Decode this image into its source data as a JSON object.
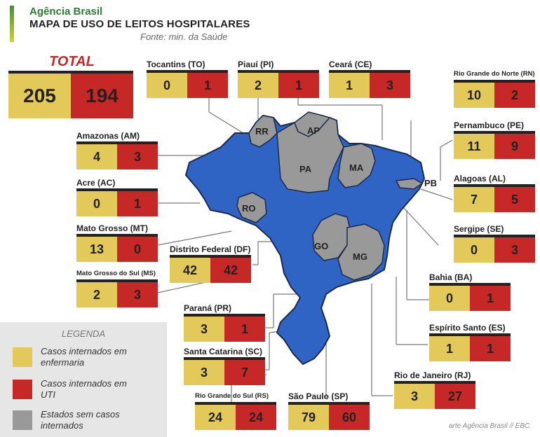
{
  "header": {
    "agency": "Agência Brasil",
    "title": "MAPA DE USO DE LEITOS HOSPITALARES",
    "source": "Fonte: min. da Saúde"
  },
  "colors": {
    "enfermaria": "#e2c95a",
    "uti": "#c62828",
    "sem_casos": "#999999",
    "com_casos": "#2f64c4"
  },
  "total": {
    "label": "TOTAL",
    "enfermaria": "205",
    "uti": "194"
  },
  "map_labels": {
    "rr": "RR",
    "ap": "AP",
    "pa": "PA",
    "ma": "MA",
    "ro": "RO",
    "go": "GO",
    "mg": "MG",
    "pb": "PB"
  },
  "legend": {
    "title": "LEGENDA",
    "items": [
      {
        "text": "Casos internados em enfermaria",
        "color": "#e2c95a"
      },
      {
        "text": "Casos internados em UTI",
        "color": "#c62828"
      },
      {
        "text": "Estados sem casos internados",
        "color": "#999999"
      }
    ]
  },
  "credit": "arte Agência Brasil // EBC",
  "chart_data": {
    "type": "table",
    "title": "MAPA DE USO DE LEITOS HOSPITALARES",
    "columns": [
      "Casos internados em enfermaria",
      "Casos internados em UTI"
    ],
    "states": [
      {
        "name": "Tocantins (TO)",
        "enfermaria": 0,
        "uti": 1
      },
      {
        "name": "Piauí (PI)",
        "enfermaria": 2,
        "uti": 1
      },
      {
        "name": "Ceará (CE)",
        "enfermaria": 1,
        "uti": 3
      },
      {
        "name": "Rio Grande do Norte (RN)",
        "enfermaria": 10,
        "uti": 2
      },
      {
        "name": "Amazonas (AM)",
        "enfermaria": 4,
        "uti": 3
      },
      {
        "name": "Pernambuco (PE)",
        "enfermaria": 11,
        "uti": 9
      },
      {
        "name": "Acre (AC)",
        "enfermaria": 0,
        "uti": 1
      },
      {
        "name": "Alagoas (AL)",
        "enfermaria": 7,
        "uti": 5
      },
      {
        "name": "Mato Grosso (MT)",
        "enfermaria": 13,
        "uti": 0
      },
      {
        "name": "Sergipe (SE)",
        "enfermaria": 0,
        "uti": 3
      },
      {
        "name": "Distrito Federal (DF)",
        "enfermaria": 42,
        "uti": 42
      },
      {
        "name": "Mato Grosso do Sul (MS)",
        "enfermaria": 2,
        "uti": 3
      },
      {
        "name": "Bahia (BA)",
        "enfermaria": 0,
        "uti": 1
      },
      {
        "name": "Paraná (PR)",
        "enfermaria": 3,
        "uti": 1
      },
      {
        "name": "Espírito Santo (ES)",
        "enfermaria": 1,
        "uti": 1
      },
      {
        "name": "Santa Catarina (SC)",
        "enfermaria": 3,
        "uti": 7
      },
      {
        "name": "Rio de Janeiro (RJ)",
        "enfermaria": 3,
        "uti": 27
      },
      {
        "name": "Rio Grande do Sul (RS)",
        "enfermaria": 24,
        "uti": 24
      },
      {
        "name": "São Paulo (SP)",
        "enfermaria": 79,
        "uti": 60
      }
    ]
  }
}
